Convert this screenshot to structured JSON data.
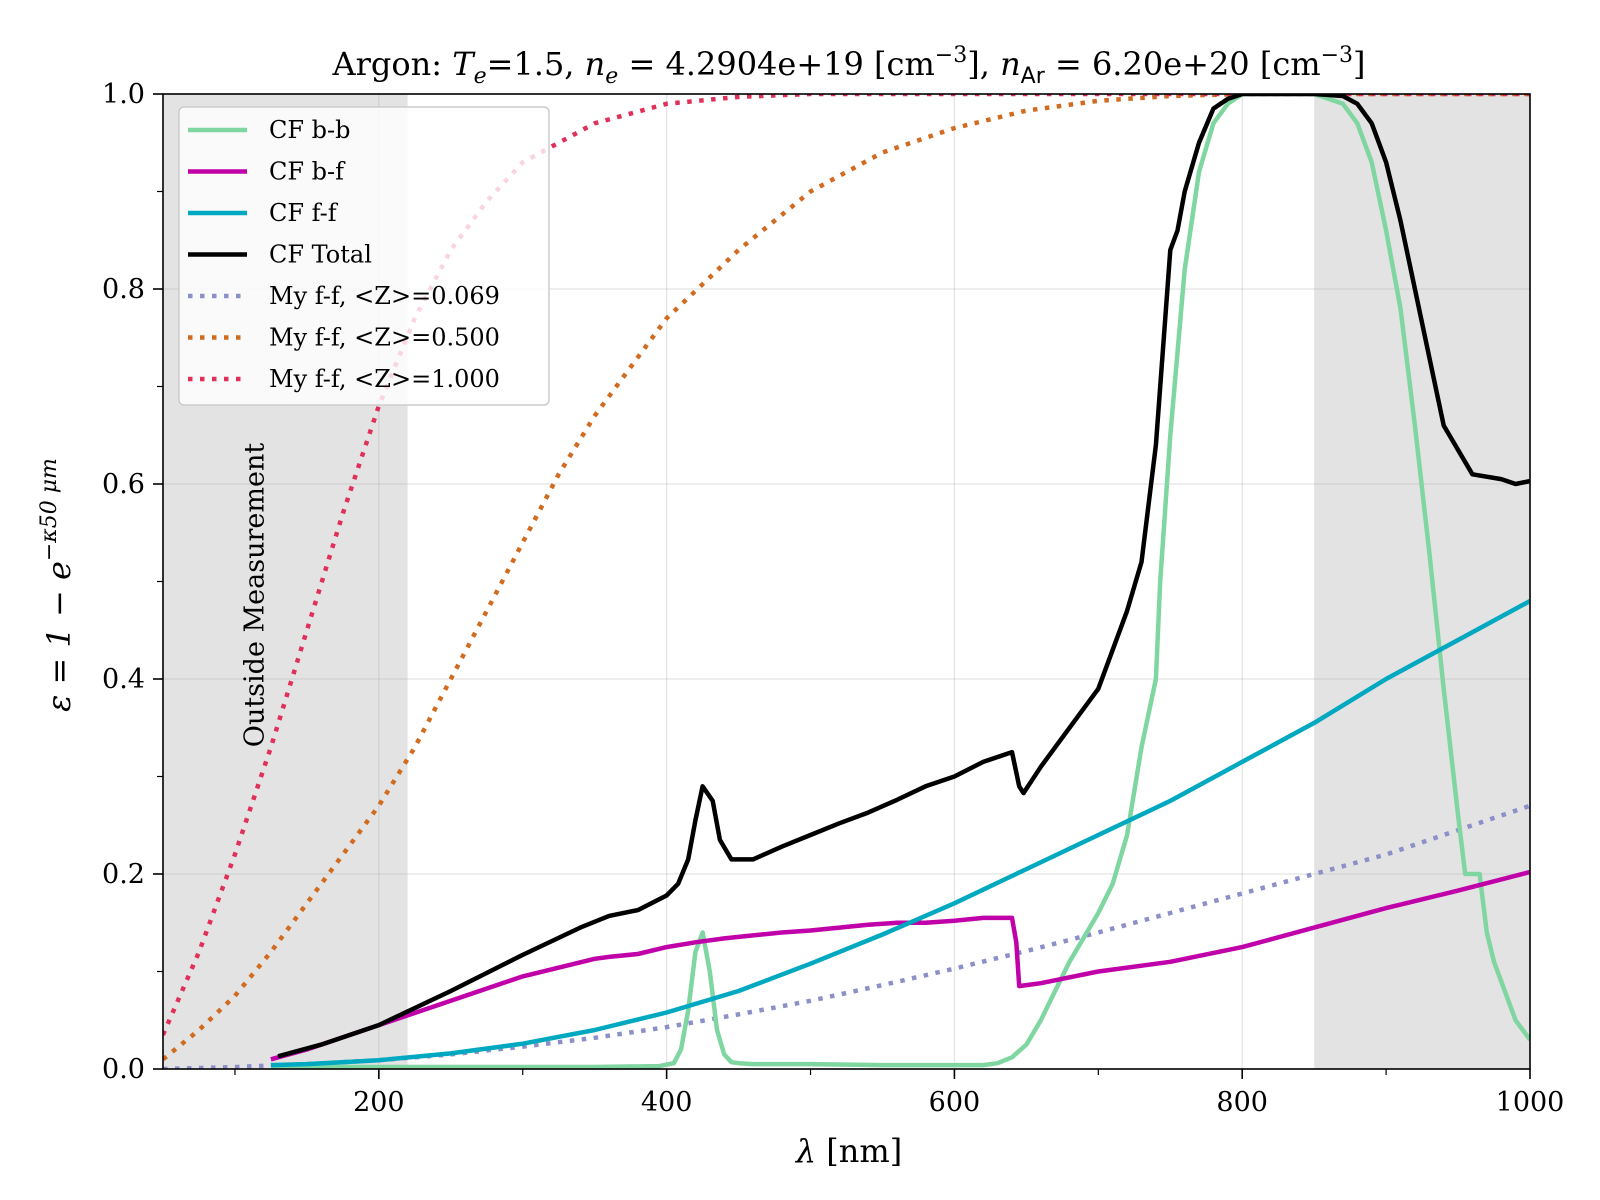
{
  "chart_data": {
    "type": "line",
    "title_parts": {
      "prefix": "Argon: ",
      "te_label": "T",
      "te_sub": "e",
      "te_value": "=1.5, ",
      "ne_label": "n",
      "ne_sub": "e",
      "ne_value": " = 4.2904e+19 [cm",
      "ne_exp": "−3",
      "ne_close": "], ",
      "nar_label": "n",
      "nar_sub": "Ar",
      "nar_value": " = 6.20e+20 [cm",
      "nar_exp": "−3",
      "nar_close": "]"
    },
    "xlabel": {
      "symbol": "λ",
      "rest": " [nm]"
    },
    "ylabel": {
      "main": "ε = 1 − e",
      "exp": "−κ50 μm"
    },
    "xlim": [
      50,
      1000
    ],
    "ylim": [
      0,
      1.0
    ],
    "xticks": [
      200,
      400,
      600,
      800,
      1000
    ],
    "xtick_labels": [
      "200",
      "400",
      "600",
      "800",
      "1000"
    ],
    "yticks": [
      0.0,
      0.2,
      0.4,
      0.6,
      0.8,
      1.0
    ],
    "ytick_labels": [
      "0.0",
      "0.2",
      "0.4",
      "0.6",
      "0.8",
      "1.0"
    ],
    "grid": true,
    "legend_position": "upper-left",
    "shaded_regions": [
      {
        "x0": 50,
        "x1": 220,
        "label": "Outside Measurement"
      },
      {
        "x0": 850,
        "x1": 1000
      }
    ],
    "series": [
      {
        "name": "CF b-b",
        "color": "#7fd6a0",
        "style": "solid",
        "x": [
          125,
          200,
          300,
          350,
          395,
          405,
          410,
          415,
          420,
          425,
          430,
          435,
          440,
          445,
          450,
          460,
          500,
          550,
          600,
          620,
          630,
          640,
          650,
          660,
          670,
          680,
          690,
          700,
          710,
          720,
          730,
          740,
          743,
          750,
          760,
          770,
          780,
          790,
          800,
          820,
          850,
          870,
          880,
          890,
          900,
          910,
          920,
          930,
          940,
          950,
          955,
          960,
          965,
          970,
          975,
          980,
          985,
          990,
          995,
          1000
        ],
        "y": [
          0.002,
          0.002,
          0.002,
          0.002,
          0.003,
          0.006,
          0.02,
          0.06,
          0.12,
          0.14,
          0.1,
          0.04,
          0.015,
          0.007,
          0.006,
          0.005,
          0.005,
          0.004,
          0.004,
          0.004,
          0.006,
          0.012,
          0.025,
          0.05,
          0.08,
          0.11,
          0.135,
          0.16,
          0.19,
          0.24,
          0.33,
          0.4,
          0.5,
          0.65,
          0.82,
          0.92,
          0.97,
          0.99,
          1.0,
          1.0,
          1.0,
          0.99,
          0.97,
          0.93,
          0.86,
          0.78,
          0.66,
          0.53,
          0.39,
          0.26,
          0.2,
          0.2,
          0.2,
          0.14,
          0.11,
          0.09,
          0.07,
          0.05,
          0.04,
          0.03
        ]
      },
      {
        "name": "CF b-f",
        "color": "#c000a8",
        "style": "solid",
        "x": [
          125,
          150,
          200,
          250,
          300,
          350,
          360,
          380,
          400,
          420,
          440,
          460,
          480,
          500,
          520,
          540,
          560,
          580,
          600,
          620,
          640,
          643,
          645,
          650,
          660,
          700,
          750,
          800,
          850,
          900,
          950,
          1000
        ],
        "y": [
          0.01,
          0.02,
          0.045,
          0.07,
          0.095,
          0.113,
          0.115,
          0.118,
          0.125,
          0.13,
          0.134,
          0.137,
          0.14,
          0.142,
          0.145,
          0.148,
          0.15,
          0.15,
          0.152,
          0.155,
          0.155,
          0.13,
          0.085,
          0.086,
          0.088,
          0.1,
          0.11,
          0.125,
          0.145,
          0.165,
          0.183,
          0.202
        ]
      },
      {
        "name": "CF f-f",
        "color": "#00a8c0",
        "style": "solid",
        "x": [
          125,
          150,
          200,
          250,
          300,
          350,
          400,
          450,
          500,
          550,
          600,
          650,
          700,
          750,
          800,
          850,
          900,
          950,
          1000
        ],
        "y": [
          0.004,
          0.005,
          0.009,
          0.016,
          0.026,
          0.04,
          0.058,
          0.08,
          0.108,
          0.138,
          0.17,
          0.205,
          0.24,
          0.275,
          0.315,
          0.355,
          0.4,
          0.44,
          0.48
        ]
      },
      {
        "name": "CF Total",
        "color": "#000000",
        "style": "solid",
        "x": [
          130,
          160,
          200,
          250,
          300,
          340,
          360,
          380,
          400,
          408,
          415,
          420,
          425,
          432,
          437,
          445,
          460,
          480,
          500,
          520,
          540,
          560,
          580,
          600,
          620,
          640,
          645,
          648,
          660,
          680,
          700,
          720,
          730,
          735,
          740,
          745,
          750,
          755,
          760,
          770,
          780,
          790,
          800,
          820,
          850,
          870,
          880,
          890,
          900,
          910,
          920,
          930,
          940,
          960,
          980,
          990,
          1000
        ],
        "y": [
          0.013,
          0.025,
          0.045,
          0.08,
          0.117,
          0.145,
          0.157,
          0.163,
          0.178,
          0.19,
          0.215,
          0.255,
          0.29,
          0.275,
          0.235,
          0.215,
          0.215,
          0.228,
          0.24,
          0.252,
          0.263,
          0.276,
          0.29,
          0.3,
          0.315,
          0.325,
          0.29,
          0.283,
          0.31,
          0.35,
          0.39,
          0.47,
          0.52,
          0.58,
          0.64,
          0.74,
          0.84,
          0.86,
          0.9,
          0.95,
          0.985,
          0.995,
          1.0,
          1.0,
          1.0,
          0.998,
          0.99,
          0.97,
          0.93,
          0.87,
          0.8,
          0.73,
          0.66,
          0.61,
          0.605,
          0.6,
          0.603
        ]
      },
      {
        "name": "My f-f, <Z>=0.069",
        "color": "#8c8fc8",
        "style": "dotted",
        "x": [
          50,
          100,
          150,
          200,
          250,
          300,
          350,
          400,
          450,
          500,
          550,
          600,
          650,
          700,
          750,
          800,
          850,
          900,
          950,
          1000
        ],
        "y": [
          0.0,
          0.002,
          0.005,
          0.009,
          0.015,
          0.023,
          0.032,
          0.043,
          0.056,
          0.07,
          0.086,
          0.103,
          0.121,
          0.14,
          0.16,
          0.18,
          0.2,
          0.22,
          0.245,
          0.27
        ]
      },
      {
        "name": "My f-f, <Z>=0.500",
        "color": "#d06b20",
        "style": "dotted",
        "x": [
          50,
          75,
          100,
          125,
          150,
          175,
          200,
          225,
          250,
          275,
          300,
          325,
          350,
          375,
          400,
          450,
          500,
          550,
          600,
          650,
          700,
          750,
          800,
          850,
          1000
        ],
        "y": [
          0.01,
          0.04,
          0.075,
          0.12,
          0.17,
          0.22,
          0.27,
          0.33,
          0.4,
          0.47,
          0.54,
          0.61,
          0.67,
          0.72,
          0.77,
          0.84,
          0.9,
          0.94,
          0.965,
          0.983,
          0.993,
          0.998,
          1.0,
          1.0,
          1.0
        ]
      },
      {
        "name": "My f-f, <Z>=1.000",
        "color": "#e0305a",
        "style": "dotted",
        "x": [
          50,
          75,
          100,
          125,
          150,
          175,
          200,
          225,
          250,
          275,
          300,
          350,
          400,
          450,
          500,
          550,
          600,
          700,
          800,
          1000
        ],
        "y": [
          0.035,
          0.12,
          0.22,
          0.33,
          0.45,
          0.57,
          0.68,
          0.77,
          0.84,
          0.89,
          0.93,
          0.97,
          0.99,
          0.997,
          1.0,
          1.0,
          1.0,
          1.0,
          1.0,
          1.0
        ]
      }
    ]
  }
}
